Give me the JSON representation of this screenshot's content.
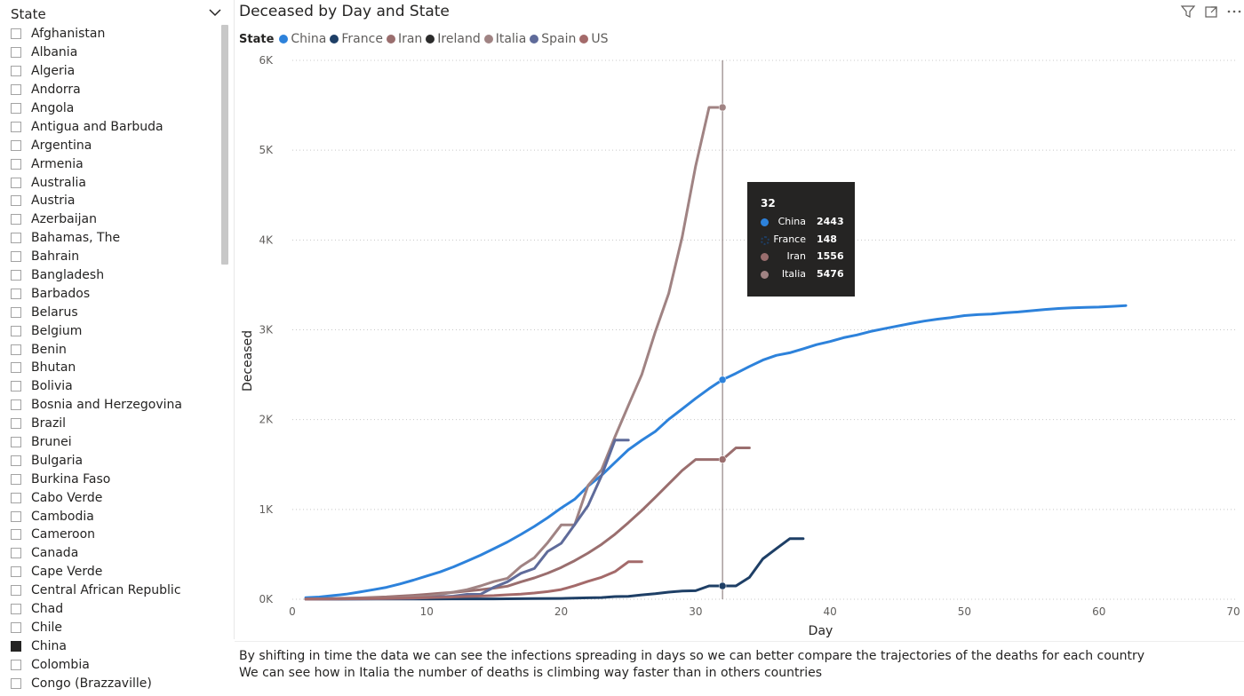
{
  "slicer": {
    "title": "State",
    "items": [
      {
        "label": "Afghanistan",
        "checked": false
      },
      {
        "label": "Albania",
        "checked": false
      },
      {
        "label": "Algeria",
        "checked": false
      },
      {
        "label": "Andorra",
        "checked": false
      },
      {
        "label": "Angola",
        "checked": false
      },
      {
        "label": "Antigua and Barbuda",
        "checked": false
      },
      {
        "label": "Argentina",
        "checked": false
      },
      {
        "label": "Armenia",
        "checked": false
      },
      {
        "label": "Australia",
        "checked": false
      },
      {
        "label": "Austria",
        "checked": false
      },
      {
        "label": "Azerbaijan",
        "checked": false
      },
      {
        "label": "Bahamas, The",
        "checked": false
      },
      {
        "label": "Bahrain",
        "checked": false
      },
      {
        "label": "Bangladesh",
        "checked": false
      },
      {
        "label": "Barbados",
        "checked": false
      },
      {
        "label": "Belarus",
        "checked": false
      },
      {
        "label": "Belgium",
        "checked": false
      },
      {
        "label": "Benin",
        "checked": false
      },
      {
        "label": "Bhutan",
        "checked": false
      },
      {
        "label": "Bolivia",
        "checked": false
      },
      {
        "label": "Bosnia and Herzegovina",
        "checked": false
      },
      {
        "label": "Brazil",
        "checked": false
      },
      {
        "label": "Brunei",
        "checked": false
      },
      {
        "label": "Bulgaria",
        "checked": false
      },
      {
        "label": "Burkina Faso",
        "checked": false
      },
      {
        "label": "Cabo Verde",
        "checked": false
      },
      {
        "label": "Cambodia",
        "checked": false
      },
      {
        "label": "Cameroon",
        "checked": false
      },
      {
        "label": "Canada",
        "checked": false
      },
      {
        "label": "Cape Verde",
        "checked": false
      },
      {
        "label": "Central African Republic",
        "checked": false
      },
      {
        "label": "Chad",
        "checked": false
      },
      {
        "label": "Chile",
        "checked": false
      },
      {
        "label": "China",
        "checked": true
      },
      {
        "label": "Colombia",
        "checked": false
      },
      {
        "label": "Congo (Brazzaville)",
        "checked": false
      }
    ]
  },
  "icons": {
    "slicer_chevron": "chevron-down-icon",
    "filter": "filter-icon",
    "focus": "focus-mode-icon",
    "more": "more-options-icon"
  },
  "tooltip": {
    "header": "32",
    "rows": [
      {
        "name": "China",
        "value": "2443",
        "color": "#2d82db",
        "marker": "dot"
      },
      {
        "name": "France",
        "value": "148",
        "color": "#1e3f66",
        "marker": "star"
      },
      {
        "name": "Iran",
        "value": "1556",
        "color": "#9a6e6e",
        "marker": "dot"
      },
      {
        "name": "Italia",
        "value": "5476",
        "color": "#a08383",
        "marker": "dot"
      }
    ]
  },
  "caption": {
    "line1": "By shifting in time the data we can see the infections spreading in days so we can better compare the trajectories of the deaths for each country",
    "line2": "We can see how in Italia the number of deaths is climbing way faster than in others countries"
  },
  "chart_data": {
    "type": "line",
    "title": "Deceased by Day and State",
    "xlabel": "Day",
    "ylabel": "Deceased",
    "legend_title": "State",
    "legend_position": "top-left",
    "xlim": [
      0,
      70
    ],
    "ylim": [
      0,
      6000
    ],
    "x_ticks": [
      0,
      10,
      20,
      30,
      40,
      50,
      60,
      70
    ],
    "y_ticks": [
      0,
      1000,
      2000,
      3000,
      4000,
      5000,
      6000
    ],
    "x_tick_labels": [
      "0",
      "10",
      "20",
      "30",
      "40",
      "50",
      "60",
      "70"
    ],
    "y_tick_labels": [
      "0K",
      "1K",
      "2K",
      "3K",
      "4K",
      "5K",
      "6K"
    ],
    "grid": "horizontal dotted",
    "hover_x": 32,
    "series": [
      {
        "name": "China",
        "color": "#2d82db",
        "points": [
          [
            1,
            17
          ],
          [
            2,
            25
          ],
          [
            3,
            41
          ],
          [
            4,
            56
          ],
          [
            5,
            80
          ],
          [
            6,
            106
          ],
          [
            7,
            132
          ],
          [
            8,
            170
          ],
          [
            9,
            213
          ],
          [
            10,
            259
          ],
          [
            11,
            304
          ],
          [
            12,
            361
          ],
          [
            13,
            425
          ],
          [
            14,
            490
          ],
          [
            15,
            563
          ],
          [
            16,
            638
          ],
          [
            17,
            722
          ],
          [
            18,
            811
          ],
          [
            19,
            908
          ],
          [
            20,
            1016
          ],
          [
            21,
            1113
          ],
          [
            22,
            1259
          ],
          [
            23,
            1380
          ],
          [
            24,
            1523
          ],
          [
            25,
            1665
          ],
          [
            26,
            1770
          ],
          [
            27,
            1868
          ],
          [
            28,
            2004
          ],
          [
            29,
            2118
          ],
          [
            30,
            2236
          ],
          [
            31,
            2345
          ],
          [
            32,
            2443
          ],
          [
            33,
            2515
          ],
          [
            34,
            2592
          ],
          [
            35,
            2663
          ],
          [
            36,
            2715
          ],
          [
            37,
            2744
          ],
          [
            38,
            2788
          ],
          [
            39,
            2835
          ],
          [
            40,
            2870
          ],
          [
            41,
            2912
          ],
          [
            42,
            2943
          ],
          [
            43,
            2981
          ],
          [
            44,
            3012
          ],
          [
            45,
            3042
          ],
          [
            46,
            3070
          ],
          [
            47,
            3097
          ],
          [
            48,
            3119
          ],
          [
            49,
            3136
          ],
          [
            50,
            3158
          ],
          [
            51,
            3169
          ],
          [
            52,
            3176
          ],
          [
            53,
            3189
          ],
          [
            54,
            3199
          ],
          [
            55,
            3213
          ],
          [
            56,
            3226
          ],
          [
            57,
            3237
          ],
          [
            58,
            3245
          ],
          [
            59,
            3249
          ],
          [
            60,
            3253
          ],
          [
            61,
            3261
          ],
          [
            62,
            3270
          ]
        ]
      },
      {
        "name": "France",
        "color": "#1e3f66",
        "points": [
          [
            1,
            1
          ],
          [
            5,
            2
          ],
          [
            10,
            3
          ],
          [
            15,
            4
          ],
          [
            18,
            7
          ],
          [
            20,
            9
          ],
          [
            22,
            16
          ],
          [
            23,
            19
          ],
          [
            24,
            30
          ],
          [
            25,
            33
          ],
          [
            26,
            48
          ],
          [
            27,
            61
          ],
          [
            28,
            79
          ],
          [
            29,
            91
          ],
          [
            30,
            95
          ],
          [
            31,
            148
          ],
          [
            32,
            148
          ],
          [
            33,
            148
          ],
          [
            34,
            243
          ],
          [
            35,
            450
          ],
          [
            36,
            562
          ],
          [
            37,
            674
          ],
          [
            38,
            674
          ]
        ]
      },
      {
        "name": "Iran",
        "color": "#9a6e6e",
        "points": [
          [
            1,
            2
          ],
          [
            3,
            8
          ],
          [
            5,
            15
          ],
          [
            7,
            26
          ],
          [
            9,
            43
          ],
          [
            10,
            54
          ],
          [
            11,
            66
          ],
          [
            12,
            77
          ],
          [
            13,
            92
          ],
          [
            14,
            107
          ],
          [
            15,
            124
          ],
          [
            16,
            145
          ],
          [
            17,
            194
          ],
          [
            18,
            237
          ],
          [
            19,
            291
          ],
          [
            20,
            354
          ],
          [
            21,
            429
          ],
          [
            22,
            514
          ],
          [
            23,
            611
          ],
          [
            24,
            724
          ],
          [
            25,
            853
          ],
          [
            26,
            988
          ],
          [
            27,
            1135
          ],
          [
            28,
            1284
          ],
          [
            29,
            1433
          ],
          [
            30,
            1556
          ],
          [
            31,
            1556
          ],
          [
            32,
            1556
          ],
          [
            33,
            1685
          ],
          [
            34,
            1685
          ]
        ]
      },
      {
        "name": "Ireland",
        "color": "#2b2b2b",
        "points": []
      },
      {
        "name": "Italia",
        "color": "#a08383",
        "points": [
          [
            1,
            2
          ],
          [
            3,
            7
          ],
          [
            5,
            12
          ],
          [
            7,
            17
          ],
          [
            8,
            21
          ],
          [
            9,
            29
          ],
          [
            10,
            34
          ],
          [
            11,
            52
          ],
          [
            12,
            79
          ],
          [
            13,
            107
          ],
          [
            14,
            148
          ],
          [
            15,
            197
          ],
          [
            16,
            233
          ],
          [
            17,
            366
          ],
          [
            18,
            463
          ],
          [
            19,
            631
          ],
          [
            20,
            827
          ],
          [
            21,
            827
          ],
          [
            22,
            1266
          ],
          [
            23,
            1441
          ],
          [
            24,
            1809
          ],
          [
            25,
            2158
          ],
          [
            26,
            2503
          ],
          [
            27,
            2978
          ],
          [
            28,
            3405
          ],
          [
            29,
            4032
          ],
          [
            30,
            4825
          ],
          [
            31,
            5476
          ],
          [
            32,
            5476
          ]
        ]
      },
      {
        "name": "Spain",
        "color": "#5f6b9a",
        "points": [
          [
            1,
            1
          ],
          [
            5,
            3
          ],
          [
            9,
            10
          ],
          [
            10,
            17
          ],
          [
            11,
            28
          ],
          [
            12,
            35
          ],
          [
            13,
            54
          ],
          [
            14,
            55
          ],
          [
            15,
            133
          ],
          [
            16,
            195
          ],
          [
            17,
            289
          ],
          [
            18,
            342
          ],
          [
            19,
            533
          ],
          [
            20,
            623
          ],
          [
            21,
            830
          ],
          [
            22,
            1043
          ],
          [
            23,
            1375
          ],
          [
            24,
            1772
          ],
          [
            25,
            1772
          ]
        ]
      },
      {
        "name": "US",
        "color": "#a46a6a",
        "points": [
          [
            1,
            1
          ],
          [
            5,
            6
          ],
          [
            8,
            11
          ],
          [
            10,
            17
          ],
          [
            12,
            26
          ],
          [
            14,
            36
          ],
          [
            15,
            41
          ],
          [
            16,
            49
          ],
          [
            17,
            57
          ],
          [
            18,
            69
          ],
          [
            19,
            85
          ],
          [
            20,
            108
          ],
          [
            21,
            150
          ],
          [
            22,
            200
          ],
          [
            23,
            244
          ],
          [
            24,
            307
          ],
          [
            25,
            417
          ],
          [
            26,
            417
          ]
        ]
      }
    ]
  }
}
